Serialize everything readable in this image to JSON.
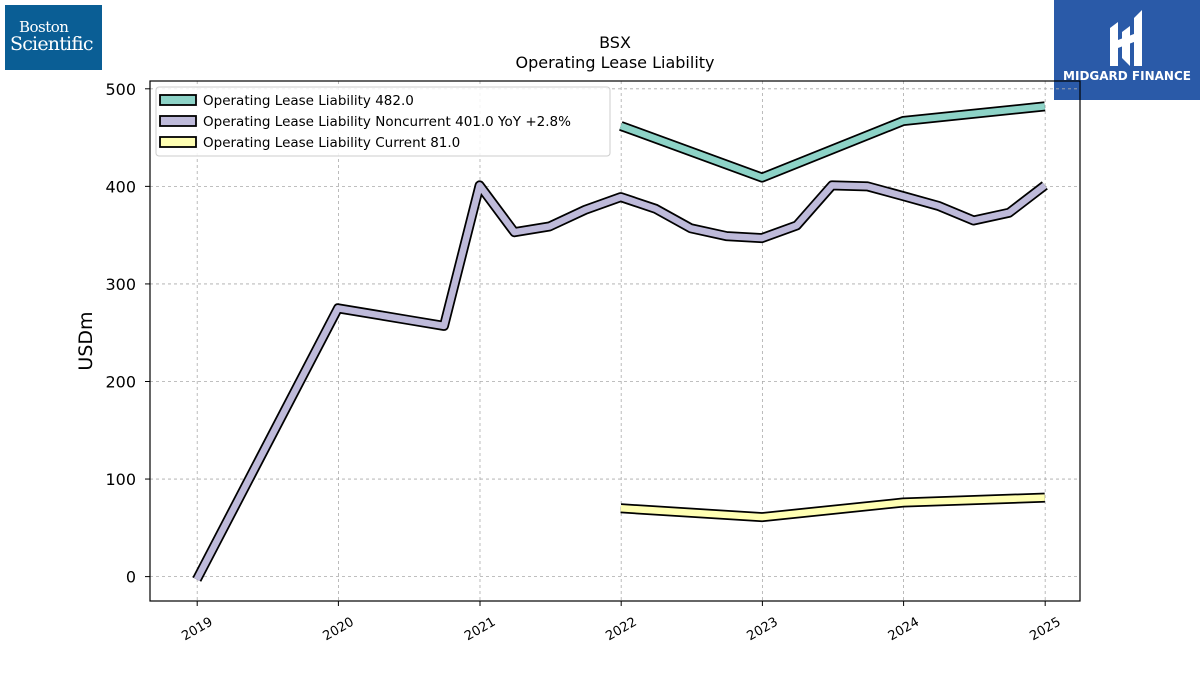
{
  "logos": {
    "left": {
      "line1": "Boston",
      "line2": "Scientific",
      "bg": "#0a5e95"
    },
    "right": {
      "name": "MIDGARD FINANCE",
      "bg": "#2a5aa8"
    }
  },
  "chart_data": {
    "type": "line",
    "title": "BSX",
    "subtitle": "Operating Lease Liability",
    "xlabel": "",
    "ylabel": "USDm",
    "xlim": [
      "2018-09-01",
      "2025-04-01"
    ],
    "ylim": [
      -25,
      508
    ],
    "x_ticks": [
      "2019",
      "2020",
      "2021",
      "2022",
      "2023",
      "2024",
      "2025"
    ],
    "y_ticks": [
      0,
      100,
      200,
      300,
      400,
      500
    ],
    "grid": true,
    "legend_position": "top-left",
    "series": [
      {
        "name": "Operating Lease Liability",
        "legend_label": "Operating Lease Liability  482.0",
        "color": "#8dd3c7",
        "points": [
          [
            "2021-12-31",
            462
          ],
          [
            "2022-12-31",
            409
          ],
          [
            "2023-12-31",
            467
          ],
          [
            "2024-12-31",
            482
          ]
        ]
      },
      {
        "name": "Operating Lease Liability Noncurrent",
        "legend_label": "Operating Lease Liability Noncurrent  401.0 YoY +2.8%",
        "color": "#bebada",
        "points": [
          [
            "2018-12-31",
            -3
          ],
          [
            "2019-12-31",
            275
          ],
          [
            "2020-06-30",
            263
          ],
          [
            "2020-09-30",
            257
          ],
          [
            "2020-12-31",
            401
          ],
          [
            "2021-03-31",
            353
          ],
          [
            "2021-06-30",
            359
          ],
          [
            "2021-09-30",
            376
          ],
          [
            "2021-12-31",
            389
          ],
          [
            "2022-03-31",
            377
          ],
          [
            "2022-06-30",
            357
          ],
          [
            "2022-09-30",
            349
          ],
          [
            "2022-12-31",
            347
          ],
          [
            "2023-03-31",
            360
          ],
          [
            "2023-06-30",
            401
          ],
          [
            "2023-09-30",
            400
          ],
          [
            "2023-12-31",
            390
          ],
          [
            "2024-03-31",
            380
          ],
          [
            "2024-06-30",
            365
          ],
          [
            "2024-09-30",
            373
          ],
          [
            "2024-12-31",
            401
          ]
        ]
      },
      {
        "name": "Operating Lease Liability Current",
        "legend_label": "Operating Lease Liability Current  81.0",
        "color": "#ffffb3",
        "points": [
          [
            "2021-12-31",
            70
          ],
          [
            "2022-12-31",
            61
          ],
          [
            "2023-12-31",
            76
          ],
          [
            "2024-12-31",
            81
          ]
        ]
      }
    ]
  }
}
